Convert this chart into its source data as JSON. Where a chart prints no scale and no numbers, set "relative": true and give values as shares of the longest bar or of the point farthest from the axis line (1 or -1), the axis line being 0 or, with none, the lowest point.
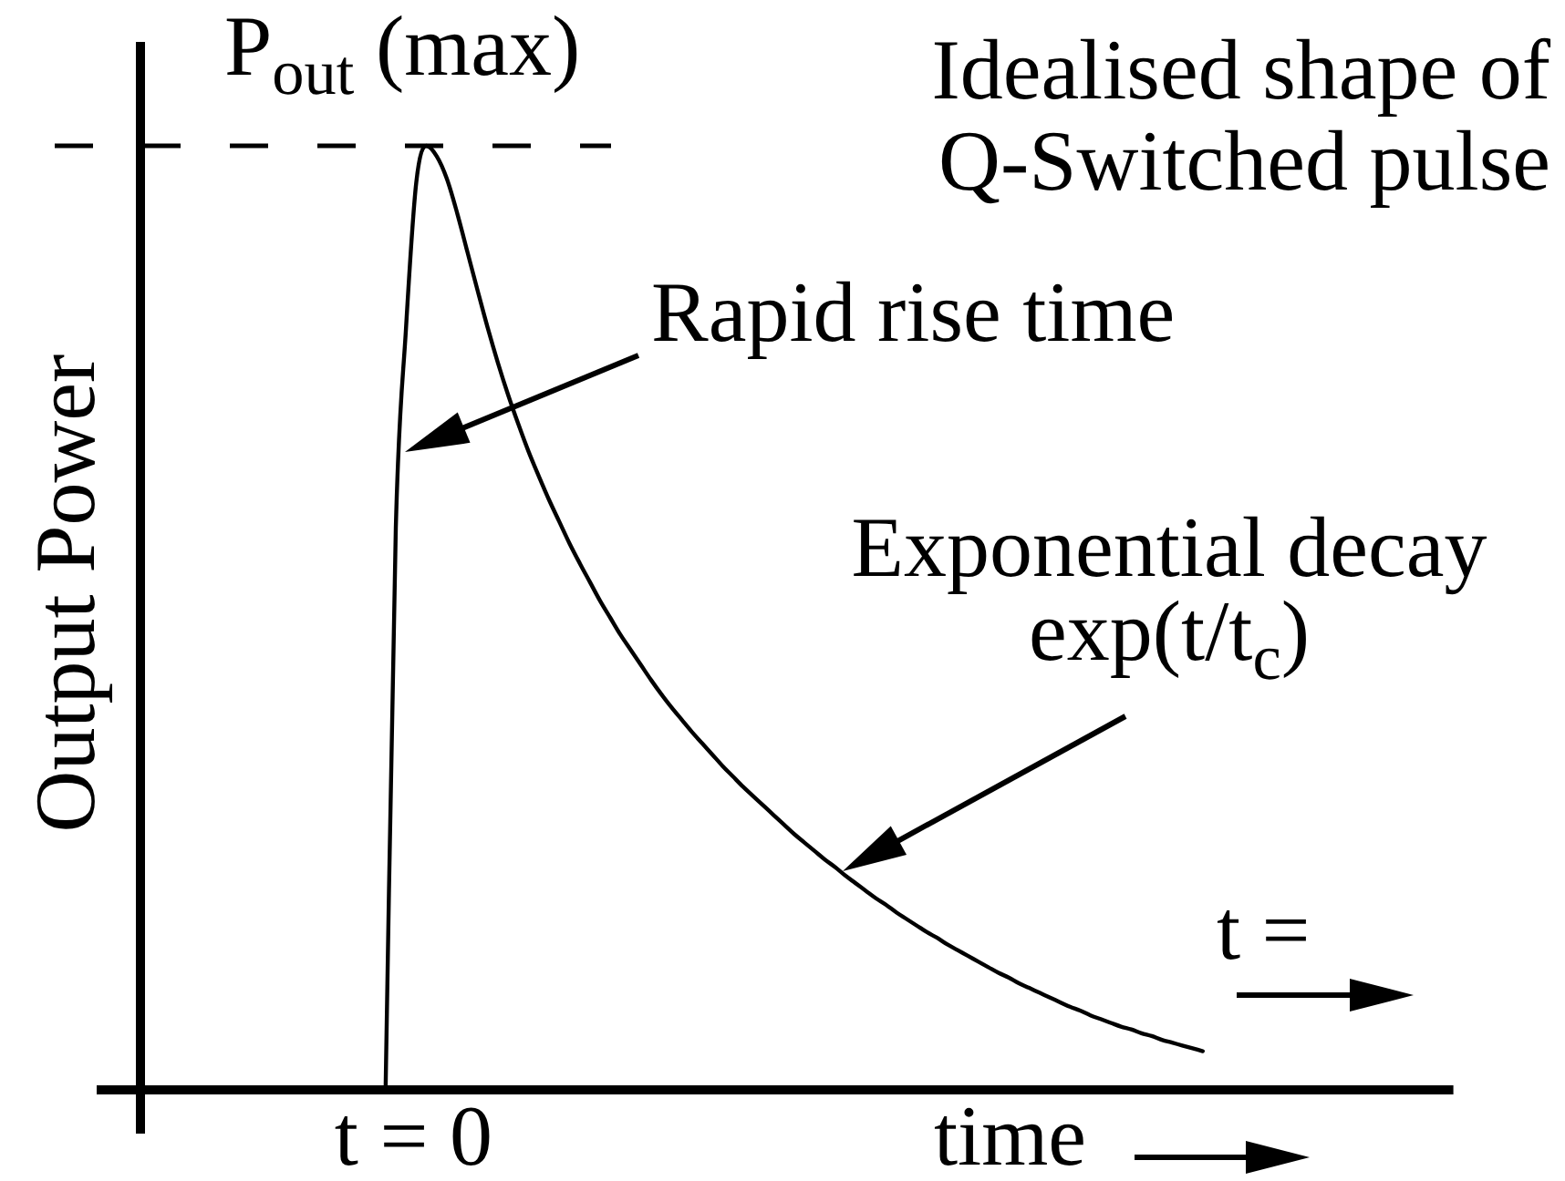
{
  "chart_data": {
    "type": "line",
    "title": "Idealised shape of Q-Switched pulse",
    "xlabel": "time",
    "ylabel": "Output Power",
    "relative": true,
    "categories": [
      null,
      null,
      null,
      null,
      null,
      null,
      null,
      null,
      null,
      null,
      null,
      null,
      null,
      null,
      null,
      null,
      null,
      null,
      null,
      null,
      null,
      null,
      null,
      null,
      null,
      null,
      null,
      null,
      null,
      null,
      null,
      null,
      null,
      null,
      null,
      null,
      null,
      null,
      null,
      null,
      null,
      null,
      null,
      null,
      null,
      null,
      null,
      null,
      null,
      null,
      null,
      null,
      null,
      null,
      null,
      null,
      null,
      null,
      null,
      null,
      null,
      null,
      null,
      null,
      null,
      null,
      null,
      null,
      null,
      null,
      null,
      null,
      null,
      null,
      null,
      null,
      null,
      null,
      null,
      null,
      null,
      null,
      null,
      null,
      null,
      null,
      null,
      null,
      null,
      null,
      null,
      null,
      null,
      null,
      null,
      null,
      null,
      null,
      null,
      null,
      null,
      null,
      null,
      null,
      null,
      null,
      null,
      null,
      null,
      null,
      null,
      null,
      null,
      null,
      null,
      null,
      null,
      null,
      null,
      null,
      null,
      null,
      null,
      null,
      null,
      null,
      null,
      null,
      null
    ],
    "series": [
      {
        "color": "#000000",
        "values": [
          null,
          null,
          null,
          null,
          null,
          null,
          null,
          null,
          null,
          null,
          null,
          null,
          null,
          null,
          null,
          null,
          null,
          null,
          null,
          null,
          null,
          null,
          null,
          null,
          0,
          0.595,
          0.807,
          0.961,
          1,
          0.989,
          0.965,
          0.929,
          0.888,
          0.847,
          0.807,
          0.77,
          0.736,
          0.705,
          0.676,
          0.65,
          0.625,
          0.602,
          0.579,
          0.558,
          0.538,
          0.518,
          0.5,
          0.482,
          0.466,
          0.45,
          0.434,
          0.419,
          0.405,
          0.392,
          0.379,
          0.367,
          0.355,
          0.343,
          0.332,
          0.321,
          0.311,
          0.301,
          0.291,
          0.281,
          0.271,
          0.262,
          0.253,
          0.244,
          0.236,
          0.227,
          0.219,
          0.211,
          0.203,
          0.196,
          0.188,
          0.181,
          0.174,
          0.167,
          0.161,
          0.154,
          0.148,
          0.142,
          0.136,
          0.13,
          0.124,
          0.119,
          0.113,
          0.108,
          0.103,
          0.098,
          0.093,
          0.088,
          0.084,
          0.079,
          0.075,
          0.071,
          0.067,
          0.064,
          0.06,
          0.057,
          0.053,
          0.05,
          0.047,
          0.044,
          0.041,
          null,
          null,
          null,
          null,
          null,
          null,
          null,
          null,
          null,
          null,
          null,
          null,
          null,
          null,
          null,
          null,
          null,
          null,
          null,
          null,
          null,
          null,
          null,
          null
        ]
      }
    ],
    "ref_lines": [
      {
        "axis": "y",
        "value": 1,
        "label": "P$_{out}$ (max)",
        "color": "#000000",
        "line_style": "dashed"
      }
    ],
    "annotations": [
      "Rapid rise time",
      "Exponential decay exp(t/t$_{c}$)",
      "t =",
      "t = 0"
    ],
    "marker": "none",
    "line_style": "solid"
  }
}
